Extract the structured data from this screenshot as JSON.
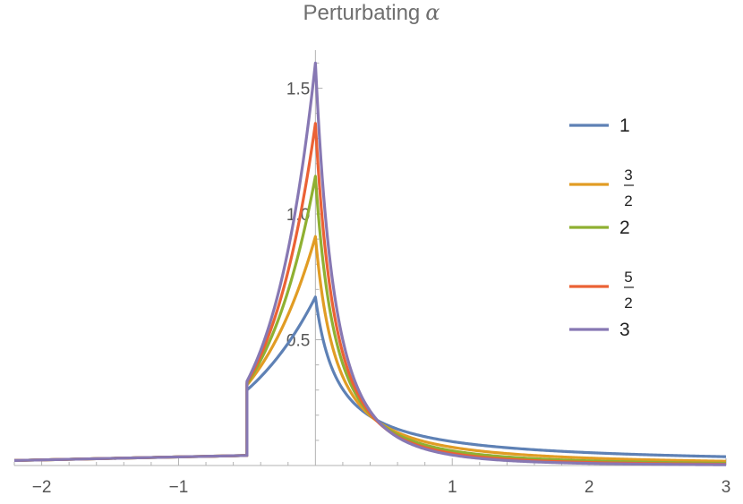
{
  "chart_data": {
    "type": "line",
    "title": "Perturbating",
    "title_symbol": "α",
    "xlabel": "",
    "ylabel": "",
    "xlim": [
      -2.2,
      3.0
    ],
    "ylim": [
      0.0,
      1.63
    ],
    "x_ticks": [
      -2,
      -1,
      1,
      2,
      3
    ],
    "x_tick_labels": [
      "−2",
      "−1",
      "1",
      "2",
      "3"
    ],
    "y_ticks": [
      0.5,
      1.0,
      1.5
    ],
    "y_tick_labels": [
      "0.5",
      "1.0",
      "1.5"
    ],
    "discontinuity_x": -0.5,
    "left_tail": {
      "x": [
        -2.2,
        -0.5
      ],
      "y": [
        0.02,
        0.04
      ]
    },
    "series": [
      {
        "name": "1",
        "label_parts": [
          "1"
        ],
        "color": "#5e81b5",
        "alpha": 1.0,
        "peak": 0.67,
        "at_discontinuity": 0.3,
        "at_x3": 0.035
      },
      {
        "name": "3/2",
        "label_parts": [
          "3",
          "2"
        ],
        "color": "#e19c24",
        "alpha": 1.5,
        "peak": 0.91,
        "at_discontinuity": 0.32,
        "at_x3": 0.017
      },
      {
        "name": "2",
        "label_parts": [
          "2"
        ],
        "color": "#8fb032",
        "alpha": 2.0,
        "peak": 1.15,
        "at_discontinuity": 0.325,
        "at_x3": 0.009
      },
      {
        "name": "5/2",
        "label_parts": [
          "5",
          "2"
        ],
        "color": "#eb6235",
        "alpha": 2.5,
        "peak": 1.36,
        "at_discontinuity": 0.33,
        "at_x3": 0.005
      },
      {
        "name": "3",
        "label_parts": [
          "3"
        ],
        "color": "#8778b3",
        "alpha": 3.0,
        "peak": 1.6,
        "at_discontinuity": 0.335,
        "at_x3": 0.003
      }
    ],
    "legend_position": "right",
    "grid": false
  }
}
